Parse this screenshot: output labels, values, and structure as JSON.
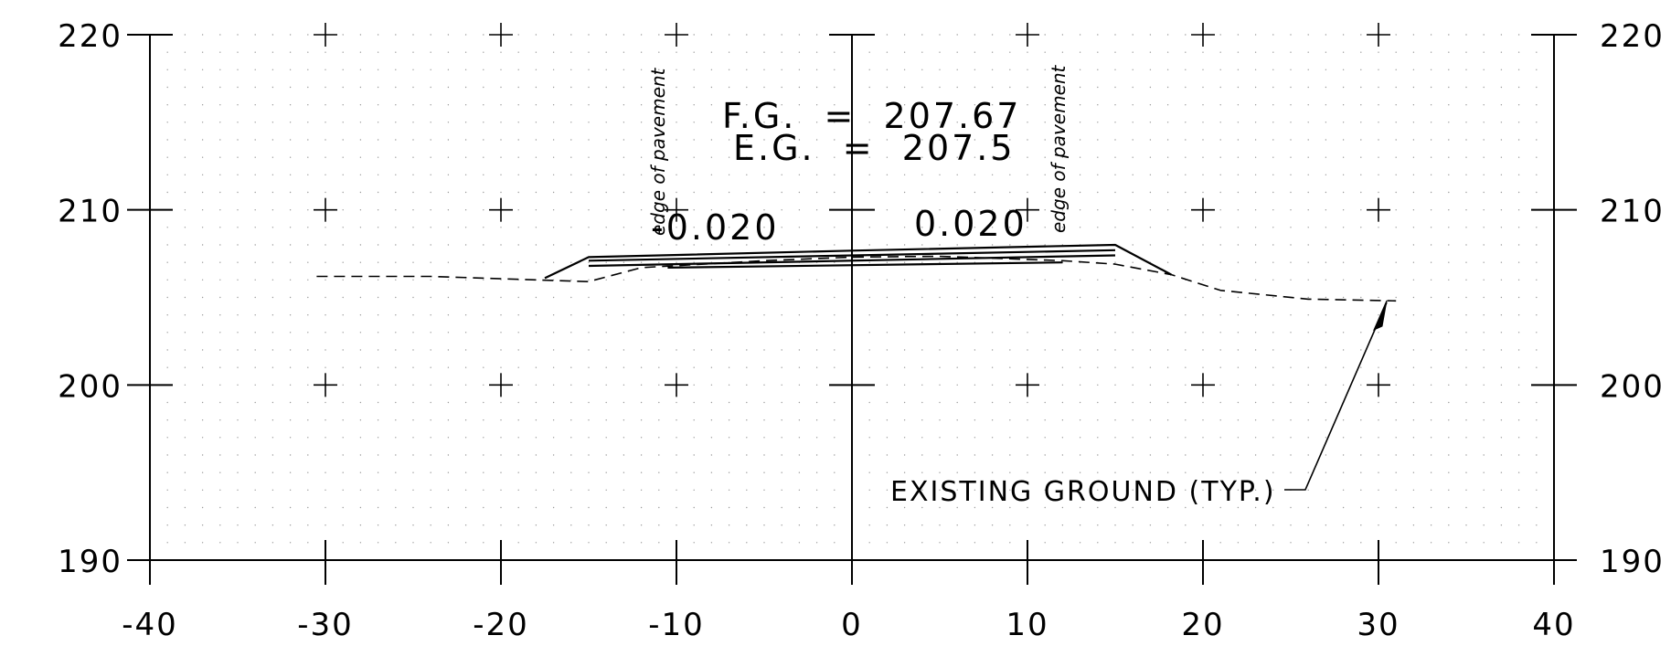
{
  "cross_section": {
    "x_axis": {
      "min": -40,
      "max": 40,
      "step": 10,
      "tick_labels": [
        "-40",
        "-30",
        "-20",
        "-10",
        "0",
        "10",
        "20",
        "30",
        "40"
      ]
    },
    "y_axis": {
      "min": 190,
      "max": 220,
      "step": 10,
      "tick_labels": [
        "190",
        "200",
        "210",
        "220"
      ]
    },
    "labels": {
      "fg": "F.G.  =  207.67",
      "eg": "E.G.  =  207.5",
      "slope_left": "-0.020",
      "slope_right": "0.020",
      "edge_left": "edge of pavement",
      "edge_right": "edge of pavement",
      "callout": "EXISTING GROUND (TYP.)"
    }
  },
  "chart_data": {
    "type": "line",
    "title": "",
    "xlabel": "",
    "ylabel": "",
    "xlim": [
      -40,
      40
    ],
    "ylim": [
      190,
      220
    ],
    "grid": true,
    "x_ticks": [
      -40,
      -30,
      -20,
      -10,
      0,
      10,
      20,
      30,
      40
    ],
    "y_ticks": [
      190,
      200,
      210,
      220
    ],
    "annotations": [
      "F.G.  =  207.67",
      "E.G.  =  207.5",
      "-0.020",
      "0.020",
      "edge of pavement",
      "edge of pavement",
      "EXISTING GROUND (TYP.)"
    ],
    "series": [
      {
        "style": "dashed",
        "x": [
          -30.5,
          -24,
          -18,
          -15,
          -12,
          -5,
          0,
          5,
          12,
          15,
          18.2,
          21,
          26,
          31
        ],
        "y": [
          206.2,
          206.2,
          206.0,
          205.9,
          206.7,
          207.1,
          207.3,
          207.35,
          207.1,
          206.9,
          206.3,
          205.4,
          204.9,
          204.8
        ]
      },
      {
        "style": "solid",
        "x": [
          -17.5,
          -15,
          0,
          15,
          18.2
        ],
        "y": [
          206.1,
          207.3,
          207.67,
          208.0,
          206.3
        ]
      },
      {
        "style": "solid",
        "x": [
          -15,
          15
        ],
        "y": [
          207.1,
          207.7
        ]
      },
      {
        "style": "solid",
        "x": [
          -15,
          15
        ],
        "y": [
          206.8,
          207.4
        ]
      },
      {
        "style": "solid",
        "x": [
          -10.5,
          12
        ],
        "y": [
          206.7,
          207.0
        ]
      }
    ]
  }
}
